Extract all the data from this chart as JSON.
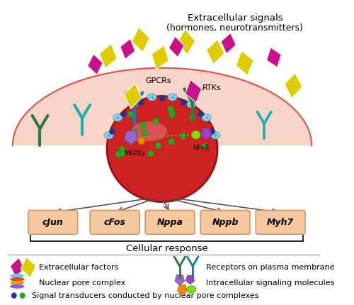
{
  "title_line1": "Extracellular signals",
  "title_line2": "(hormones, neurotransmitters)",
  "gene_labels": [
    "cJun",
    "cFos",
    "Nppa",
    "Nppb",
    "Myh7"
  ],
  "cellular_response": "Cellular response",
  "label_mapks": "MAPKs",
  "label_nfkb": "NFκB",
  "label_gpcrs": "GPCRs",
  "label_rtks": "RTKs",
  "bg_color": "#ffffff",
  "cell_fill": "#f9d0c4",
  "cell_edge": "#e05050",
  "nucleus_fill": "#cc2222",
  "nucleus_edge": "#991111",
  "nucleus_shine": "#e86060",
  "box_fill": "#f5c8a0",
  "box_edge": "#cc9966",
  "yellow_diamond": "#ddcc00",
  "magenta_diamond": "#cc1188",
  "green_receptor": "#2d7a3e",
  "blue_receptor": "#1a7ab8",
  "teal_receptor": "#1aafaf",
  "npc_color": "#88ccee",
  "green_dot": "#22aa22",
  "blue_dot": "#223399",
  "mapk_purple": "#9966cc",
  "mapk_orange": "#ee8800",
  "nfkb_lime": "#88dd00",
  "nfkb_purple": "#9944bb"
}
